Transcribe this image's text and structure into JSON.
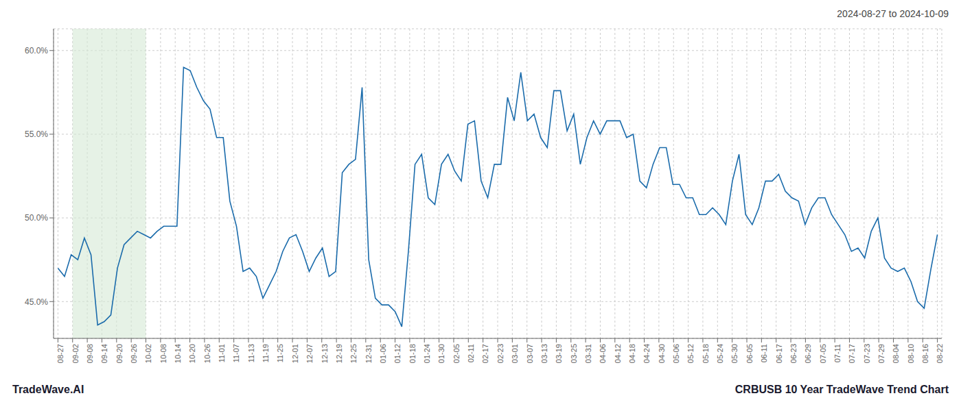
{
  "chart_data": {
    "type": "line",
    "title": "2024-08-27 to 2024-10-09",
    "annotations": [
      "TradeWave.AI",
      "CRBUSB 10 Year TradeWave Trend Chart"
    ],
    "grid": true,
    "color": "#1a6bab",
    "xlim": [
      -0.3,
      60.3
    ],
    "xticks": [
      {
        "value": 0,
        "label": "08-27"
      },
      {
        "value": 1,
        "label": "09-02"
      },
      {
        "value": 2,
        "label": "09-08"
      },
      {
        "value": 3,
        "label": "09-14"
      },
      {
        "value": 4,
        "label": "09-20"
      },
      {
        "value": 5,
        "label": "09-26"
      },
      {
        "value": 6,
        "label": "10-02"
      },
      {
        "value": 7,
        "label": "10-08"
      },
      {
        "value": 8,
        "label": "10-14"
      },
      {
        "value": 9,
        "label": "10-20"
      },
      {
        "value": 10,
        "label": "10-26"
      },
      {
        "value": 11,
        "label": "11-01"
      },
      {
        "value": 12,
        "label": "11-07"
      },
      {
        "value": 13,
        "label": "11-13"
      },
      {
        "value": 14,
        "label": "11-19"
      },
      {
        "value": 15,
        "label": "11-25"
      },
      {
        "value": 16,
        "label": "12-01"
      },
      {
        "value": 17,
        "label": "12-07"
      },
      {
        "value": 18,
        "label": "12-13"
      },
      {
        "value": 19,
        "label": "12-19"
      },
      {
        "value": 20,
        "label": "12-25"
      },
      {
        "value": 21,
        "label": "12-31"
      },
      {
        "value": 22,
        "label": "01-06"
      },
      {
        "value": 23,
        "label": "01-12"
      },
      {
        "value": 24,
        "label": "01-18"
      },
      {
        "value": 25,
        "label": "01-24"
      },
      {
        "value": 26,
        "label": "01-30"
      },
      {
        "value": 27,
        "label": "02-05"
      },
      {
        "value": 28,
        "label": "02-11"
      },
      {
        "value": 29,
        "label": "02-17"
      },
      {
        "value": 30,
        "label": "02-23"
      },
      {
        "value": 31,
        "label": "03-01"
      },
      {
        "value": 32,
        "label": "03-07"
      },
      {
        "value": 33,
        "label": "03-13"
      },
      {
        "value": 34,
        "label": "03-19"
      },
      {
        "value": 35,
        "label": "03-25"
      },
      {
        "value": 36,
        "label": "03-31"
      },
      {
        "value": 37,
        "label": "04-06"
      },
      {
        "value": 38,
        "label": "04-12"
      },
      {
        "value": 39,
        "label": "04-18"
      },
      {
        "value": 40,
        "label": "04-24"
      },
      {
        "value": 41,
        "label": "04-30"
      },
      {
        "value": 42,
        "label": "05-06"
      },
      {
        "value": 43,
        "label": "05-12"
      },
      {
        "value": 44,
        "label": "05-18"
      },
      {
        "value": 45,
        "label": "05-24"
      },
      {
        "value": 46,
        "label": "05-30"
      },
      {
        "value": 47,
        "label": "06-05"
      },
      {
        "value": 48,
        "label": "06-11"
      },
      {
        "value": 49,
        "label": "06-17"
      },
      {
        "value": 50,
        "label": "06-23"
      },
      {
        "value": 51,
        "label": "06-29"
      },
      {
        "value": 52,
        "label": "07-05"
      },
      {
        "value": 53,
        "label": "07-11"
      },
      {
        "value": 54,
        "label": "07-17"
      },
      {
        "value": 55,
        "label": "07-23"
      },
      {
        "value": 56,
        "label": "07-29"
      },
      {
        "value": 57,
        "label": "08-04"
      },
      {
        "value": 58,
        "label": "08-10"
      },
      {
        "value": 59,
        "label": "08-16"
      },
      {
        "value": 60,
        "label": "08-22"
      }
    ],
    "ylim": [
      0.428,
      0.613
    ],
    "yticks": [
      {
        "value": 0.45,
        "label": "45.0%"
      },
      {
        "value": 0.5,
        "label": "50.0%"
      },
      {
        "value": 0.55,
        "label": "55.0%"
      },
      {
        "value": 0.6,
        "label": "60.0%"
      }
    ],
    "shaded_range": {
      "x": [
        1,
        6
      ],
      "color": "#d6ead6"
    },
    "x": [
      0,
      0.4511,
      0.9023,
      1.3534,
      1.8045,
      2.2556,
      2.7068,
      3.1579,
      3.609,
      4.0602,
      4.5113,
      4.9624,
      5.4135,
      5.8647,
      6.3158,
      6.7669,
      7.218,
      7.6692,
      8.1203,
      8.5714,
      9.0226,
      9.4737,
      9.9248,
      10.3759,
      10.8271,
      11.2782,
      11.7293,
      12.1805,
      12.6316,
      13.0827,
      13.5338,
      13.985,
      14.4361,
      14.8872,
      15.3383,
      15.7895,
      16.2406,
      16.6917,
      17.1429,
      17.594,
      18.0451,
      18.4962,
      18.9474,
      19.3985,
      19.8496,
      20.3008,
      20.7519,
      21.203,
      21.6541,
      22.1053,
      22.5564,
      23.0075,
      23.4586,
      23.9098,
      24.3609,
      24.812,
      25.2632,
      25.7143,
      26.1654,
      26.6165,
      27.0677,
      27.5188,
      27.9699,
      28.4211,
      28.8722,
      29.3233,
      29.7744,
      30.2256,
      30.6767,
      31.1278,
      31.5789,
      32.0301,
      32.4812,
      32.9323,
      33.3835,
      33.8346,
      34.2857,
      34.7368,
      35.188,
      35.6391,
      36.0902,
      36.5414,
      36.9925,
      37.4436,
      37.8947,
      38.3459,
      38.797,
      39.2481,
      39.6992,
      40.1504,
      40.6015,
      41.0526,
      41.5038,
      41.9549,
      42.406,
      42.8571,
      43.3083,
      43.7594,
      44.2105,
      44.6617,
      45.1128,
      45.5639,
      46.015,
      46.4662,
      46.9173,
      47.3684,
      47.8195,
      48.2707,
      48.7218,
      49.1729,
      49.6241,
      50.0752,
      50.5263,
      50.9774,
      51.4286,
      51.8797,
      52.3308,
      52.782,
      53.2331,
      53.6842,
      54.1353,
      54.5865,
      55.0376,
      55.4887,
      55.9398,
      56.391,
      56.8421,
      57.2932,
      57.7444,
      58.1955,
      58.6466,
      59.0977,
      59.5489,
      60
    ],
    "values": [
      0.47,
      0.465,
      0.478,
      0.475,
      0.488,
      0.478,
      0.436,
      0.438,
      0.442,
      0.47,
      0.484,
      0.488,
      0.492,
      0.49,
      0.488,
      0.492,
      0.495,
      0.495,
      0.495,
      0.59,
      0.588,
      0.578,
      0.57,
      0.565,
      0.548,
      0.548,
      0.51,
      0.495,
      0.468,
      0.47,
      0.465,
      0.452,
      0.46,
      0.468,
      0.48,
      0.488,
      0.49,
      0.48,
      0.468,
      0.476,
      0.482,
      0.465,
      0.468,
      0.527,
      0.532,
      0.535,
      0.578,
      0.475,
      0.452,
      0.448,
      0.448,
      0.444,
      0.435,
      0.48,
      0.532,
      0.538,
      0.512,
      0.508,
      0.532,
      0.538,
      0.528,
      0.522,
      0.556,
      0.558,
      0.522,
      0.512,
      0.532,
      0.532,
      0.572,
      0.558,
      0.587,
      0.558,
      0.562,
      0.548,
      0.542,
      0.576,
      0.576,
      0.552,
      0.562,
      0.532,
      0.548,
      0.558,
      0.55,
      0.558,
      0.558,
      0.558,
      0.548,
      0.55,
      0.522,
      0.518,
      0.532,
      0.542,
      0.542,
      0.52,
      0.52,
      0.512,
      0.512,
      0.502,
      0.502,
      0.506,
      0.502,
      0.496,
      0.522,
      0.538,
      0.502,
      0.496,
      0.506,
      0.522,
      0.522,
      0.526,
      0.516,
      0.512,
      0.51,
      0.496,
      0.506,
      0.512,
      0.512,
      0.502,
      0.496,
      0.49,
      0.48,
      0.482,
      0.476,
      0.492,
      0.5,
      0.476,
      0.47,
      0.468,
      0.47,
      0.462,
      0.45,
      0.446,
      0.469,
      0.49
    ]
  }
}
